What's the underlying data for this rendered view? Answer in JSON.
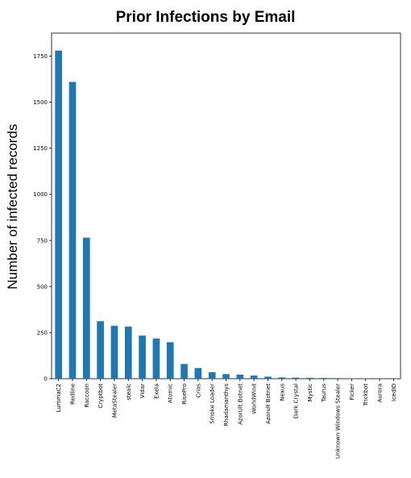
{
  "chart_data": {
    "type": "bar",
    "title": "Prior Infections by Email",
    "ylabel": "Number of infected records",
    "xlabel": "",
    "ylim": [
      0,
      1875
    ],
    "yticks": [
      0,
      250,
      500,
      750,
      1000,
      1250,
      1500,
      1750
    ],
    "ytick_labels": [
      "0",
      "250",
      "500",
      "750",
      "1000",
      "1250",
      "1500",
      "1750"
    ],
    "grid": false,
    "bar_color": "#1f77b4",
    "categories": [
      "LummaC2",
      "Redline",
      "Raccoon",
      "Cryptbot",
      "MetaStealer",
      "stealc",
      "Vidar",
      "Exela",
      "Atomic",
      "RisePro",
      "Crios",
      "Smoke Loader",
      "Rhadamanthys",
      "AzorUlt Botnet",
      "WorldWind",
      "Azorult Botnet",
      "Nexus",
      "Dark Crystal",
      "Mystic",
      "Taurus",
      "Unknown Windows Stealer",
      "Ficker",
      "Trickbot",
      "Aurora",
      "IcedID"
    ],
    "values": [
      1780,
      1610,
      765,
      312,
      287,
      283,
      234,
      218,
      198,
      80,
      58,
      35,
      25,
      22,
      17,
      11,
      7,
      6,
      5,
      4,
      3,
      2,
      2,
      1,
      1
    ]
  }
}
